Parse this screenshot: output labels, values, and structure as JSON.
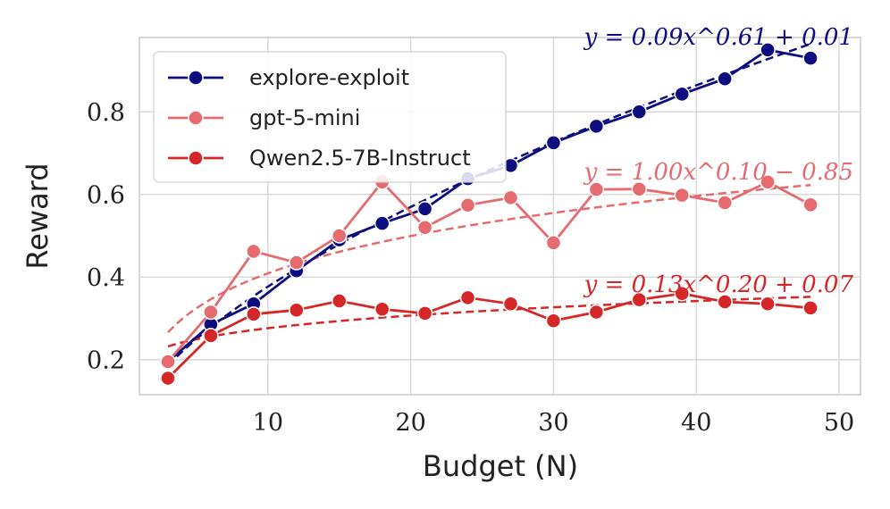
{
  "chart_data": {
    "type": "line",
    "title": "",
    "xlabel": "Budget (N)",
    "ylabel": "Reward",
    "xlim": [
      1,
      51.5
    ],
    "ylim": [
      0.115,
      0.98
    ],
    "xticks": [
      10,
      20,
      30,
      40,
      50
    ],
    "xtick_labels": [
      "10",
      "20",
      "30",
      "40",
      "50"
    ],
    "yticks": [
      0.2,
      0.4,
      0.6,
      0.8
    ],
    "ytick_labels": [
      "0.2",
      "0.4",
      "0.6",
      "0.8"
    ],
    "grid": true,
    "legend_position": "top-left",
    "x": [
      3,
      6,
      9,
      12,
      15,
      18,
      21,
      24,
      27,
      30,
      33,
      36,
      39,
      42,
      45,
      48
    ],
    "series": [
      {
        "name": "explore-exploit",
        "color": "#0d0d80",
        "values": [
          0.195,
          0.285,
          0.335,
          0.415,
          0.49,
          0.53,
          0.565,
          0.638,
          0.67,
          0.725,
          0.765,
          0.8,
          0.843,
          0.88,
          0.95,
          0.93
        ],
        "fit": {
          "a": 0.09,
          "b": 0.61,
          "c": 0.01,
          "label": "y = 0.09x^0.61 + 0.01"
        }
      },
      {
        "name": "gpt-5-mini",
        "color": "#e56b6f",
        "values": [
          0.195,
          0.315,
          0.462,
          0.435,
          0.5,
          0.63,
          0.52,
          0.574,
          0.592,
          0.483,
          0.612,
          0.613,
          0.598,
          0.58,
          0.63,
          0.575
        ],
        "fit": {
          "a": 1.0,
          "b": 0.1,
          "c": -0.85,
          "label": "y = 1.00x^0.10 − 0.85"
        }
      },
      {
        "name": "Qwen2.5-7B-Instruct",
        "color": "#d62728",
        "values": [
          0.155,
          0.258,
          0.31,
          0.32,
          0.342,
          0.322,
          0.312,
          0.35,
          0.335,
          0.294,
          0.315,
          0.345,
          0.36,
          0.34,
          0.335,
          0.325
        ],
        "fit": {
          "a": 0.13,
          "b": 0.2,
          "c": 0.07,
          "label": "y = 0.13x^0.20 + 0.07"
        }
      }
    ]
  }
}
